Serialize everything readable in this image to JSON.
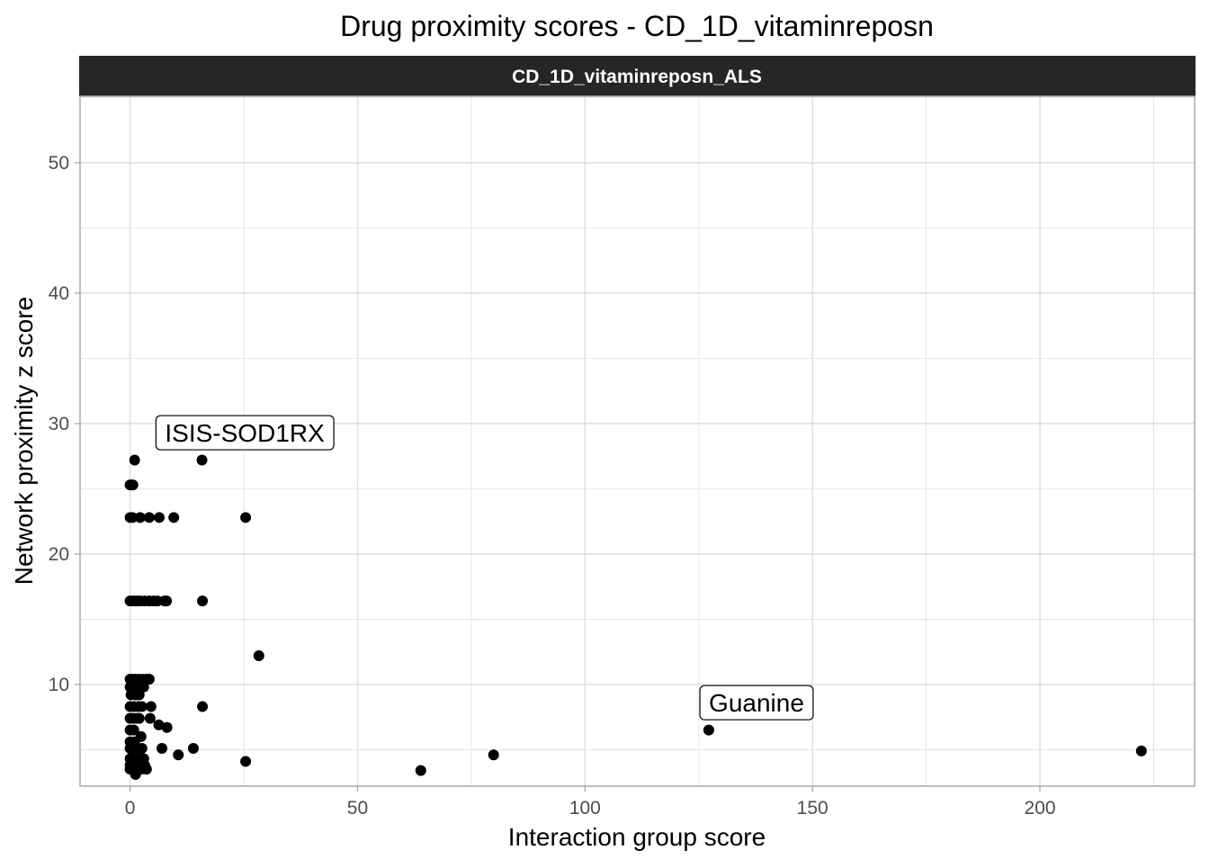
{
  "chart_data": {
    "type": "scatter",
    "title": "Drug proximity scores - CD_1D_vitaminreposn",
    "facet_label": "CD_1D_vitaminreposn_ALS",
    "xlabel": "Interaction group score",
    "ylabel": "Network proximity z score",
    "xlim": [
      -11,
      234
    ],
    "ylim": [
      2.2,
      55.1
    ],
    "xticks": [
      0,
      50,
      100,
      150,
      200
    ],
    "yticks": [
      10,
      20,
      30,
      40,
      50
    ],
    "grid": true,
    "colors": {
      "facet_bg": "#262626",
      "facet_text": "#ffffff",
      "grid": "#dcdcdc",
      "border": "#a6a6a6",
      "point": "#000000",
      "tick_text": "#4d4d4d",
      "label_text": "#000000"
    },
    "annotations": [
      {
        "text": "ISIS-SOD1RX",
        "x": 25.2,
        "y": 29.3
      },
      {
        "text": "Guanine",
        "x": 137.7,
        "y": 8.6
      }
    ],
    "points": [
      {
        "x": 1.0,
        "y": 27.2
      },
      {
        "x": 15.8,
        "y": 27.2
      },
      {
        "x": 0.0,
        "y": 25.3
      },
      {
        "x": 0.3,
        "y": 25.3
      },
      {
        "x": 0.6,
        "y": 25.3
      },
      {
        "x": 0.0,
        "y": 22.8
      },
      {
        "x": 0.5,
        "y": 22.8
      },
      {
        "x": 2.2,
        "y": 22.8
      },
      {
        "x": 4.2,
        "y": 22.8
      },
      {
        "x": 6.4,
        "y": 22.8
      },
      {
        "x": 9.6,
        "y": 22.8
      },
      {
        "x": 25.4,
        "y": 22.8
      },
      {
        "x": 0.0,
        "y": 16.4
      },
      {
        "x": 0.5,
        "y": 16.4
      },
      {
        "x": 1.0,
        "y": 16.4
      },
      {
        "x": 1.6,
        "y": 16.4
      },
      {
        "x": 2.2,
        "y": 16.4
      },
      {
        "x": 3.2,
        "y": 16.4
      },
      {
        "x": 4.2,
        "y": 16.4
      },
      {
        "x": 5.2,
        "y": 16.4
      },
      {
        "x": 6.0,
        "y": 16.4
      },
      {
        "x": 7.6,
        "y": 16.4
      },
      {
        "x": 8.0,
        "y": 16.4
      },
      {
        "x": 15.9,
        "y": 16.4
      },
      {
        "x": 28.3,
        "y": 12.2
      },
      {
        "x": 0.0,
        "y": 10.4
      },
      {
        "x": 0.6,
        "y": 10.4
      },
      {
        "x": 1.2,
        "y": 10.4
      },
      {
        "x": 2.0,
        "y": 10.4
      },
      {
        "x": 2.8,
        "y": 10.4
      },
      {
        "x": 3.6,
        "y": 10.4
      },
      {
        "x": 4.2,
        "y": 10.4
      },
      {
        "x": 0.0,
        "y": 9.8
      },
      {
        "x": 0.8,
        "y": 9.8
      },
      {
        "x": 1.6,
        "y": 9.8
      },
      {
        "x": 2.4,
        "y": 9.8
      },
      {
        "x": 3.0,
        "y": 9.8
      },
      {
        "x": 0.2,
        "y": 9.2
      },
      {
        "x": 1.2,
        "y": 9.2
      },
      {
        "x": 2.0,
        "y": 9.2
      },
      {
        "x": 0.0,
        "y": 8.3
      },
      {
        "x": 0.8,
        "y": 8.3
      },
      {
        "x": 1.8,
        "y": 8.3
      },
      {
        "x": 2.6,
        "y": 8.3
      },
      {
        "x": 4.6,
        "y": 8.3
      },
      {
        "x": 15.9,
        "y": 8.3
      },
      {
        "x": 0.0,
        "y": 7.4
      },
      {
        "x": 0.6,
        "y": 7.4
      },
      {
        "x": 1.4,
        "y": 7.4
      },
      {
        "x": 2.0,
        "y": 7.4
      },
      {
        "x": 4.4,
        "y": 7.4
      },
      {
        "x": 6.3,
        "y": 6.9
      },
      {
        "x": 8.1,
        "y": 6.7
      },
      {
        "x": 0.0,
        "y": 6.5
      },
      {
        "x": 0.8,
        "y": 6.5
      },
      {
        "x": 2.4,
        "y": 6.0
      },
      {
        "x": 0.0,
        "y": 5.6
      },
      {
        "x": 1.0,
        "y": 5.6
      },
      {
        "x": 0.0,
        "y": 5.1
      },
      {
        "x": 0.6,
        "y": 5.1
      },
      {
        "x": 1.6,
        "y": 5.1
      },
      {
        "x": 2.6,
        "y": 5.1
      },
      {
        "x": 7.0,
        "y": 5.1
      },
      {
        "x": 13.9,
        "y": 5.1
      },
      {
        "x": 10.6,
        "y": 4.6
      },
      {
        "x": 0.0,
        "y": 4.3
      },
      {
        "x": 1.0,
        "y": 4.3
      },
      {
        "x": 2.0,
        "y": 4.3
      },
      {
        "x": 3.0,
        "y": 4.3
      },
      {
        "x": 25.4,
        "y": 4.1
      },
      {
        "x": 0.0,
        "y": 3.8
      },
      {
        "x": 0.6,
        "y": 3.8
      },
      {
        "x": 1.4,
        "y": 3.8
      },
      {
        "x": 2.2,
        "y": 3.8
      },
      {
        "x": 3.2,
        "y": 3.8
      },
      {
        "x": 0.0,
        "y": 3.5
      },
      {
        "x": 0.8,
        "y": 3.5
      },
      {
        "x": 2.4,
        "y": 3.5
      },
      {
        "x": 3.6,
        "y": 3.5
      },
      {
        "x": 1.2,
        "y": 3.1
      },
      {
        "x": 63.9,
        "y": 3.4
      },
      {
        "x": 79.9,
        "y": 4.6
      },
      {
        "x": 127.2,
        "y": 6.5
      },
      {
        "x": 222.3,
        "y": 4.9
      }
    ]
  }
}
